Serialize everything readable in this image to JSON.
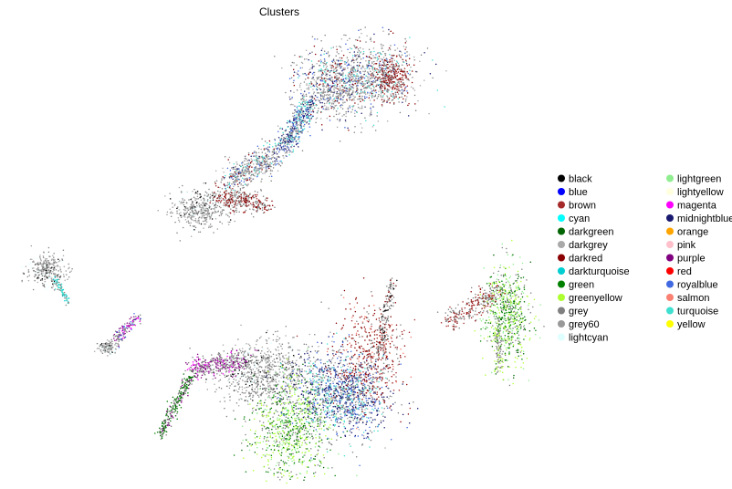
{
  "chart_data": {
    "type": "scatter",
    "title": "Clusters",
    "xlabel": "",
    "ylabel": "",
    "grid": false,
    "axes_visible": false,
    "legend_placement": "right",
    "legend_columns": 2,
    "legend": [
      {
        "name": "black",
        "color": "#000000"
      },
      {
        "name": "blue",
        "color": "#0000ff"
      },
      {
        "name": "brown",
        "color": "#a52a2a"
      },
      {
        "name": "cyan",
        "color": "#00ffff"
      },
      {
        "name": "darkgreen",
        "color": "#006400"
      },
      {
        "name": "darkgrey",
        "color": "#a9a9a9"
      },
      {
        "name": "darkred",
        "color": "#8b0000"
      },
      {
        "name": "darkturquoise",
        "color": "#00ced1"
      },
      {
        "name": "green",
        "color": "#008000"
      },
      {
        "name": "greenyellow",
        "color": "#adff2f"
      },
      {
        "name": "grey",
        "color": "#808080"
      },
      {
        "name": "grey60",
        "color": "#999999"
      },
      {
        "name": "lightcyan",
        "color": "#e0ffff"
      },
      {
        "name": "lightgreen",
        "color": "#90ee90"
      },
      {
        "name": "lightyellow",
        "color": "#ffffe0"
      },
      {
        "name": "magenta",
        "color": "#ff00ff"
      },
      {
        "name": "midnightblue",
        "color": "#191970"
      },
      {
        "name": "orange",
        "color": "#ffa500"
      },
      {
        "name": "pink",
        "color": "#ffc0cb"
      },
      {
        "name": "purple",
        "color": "#800080"
      },
      {
        "name": "red",
        "color": "#ff0000"
      },
      {
        "name": "royalblue",
        "color": "#4169e1"
      },
      {
        "name": "salmon",
        "color": "#fa8072"
      },
      {
        "name": "turquoise",
        "color": "#40e0d0"
      },
      {
        "name": "yellow",
        "color": "#ffff00"
      }
    ]
  }
}
